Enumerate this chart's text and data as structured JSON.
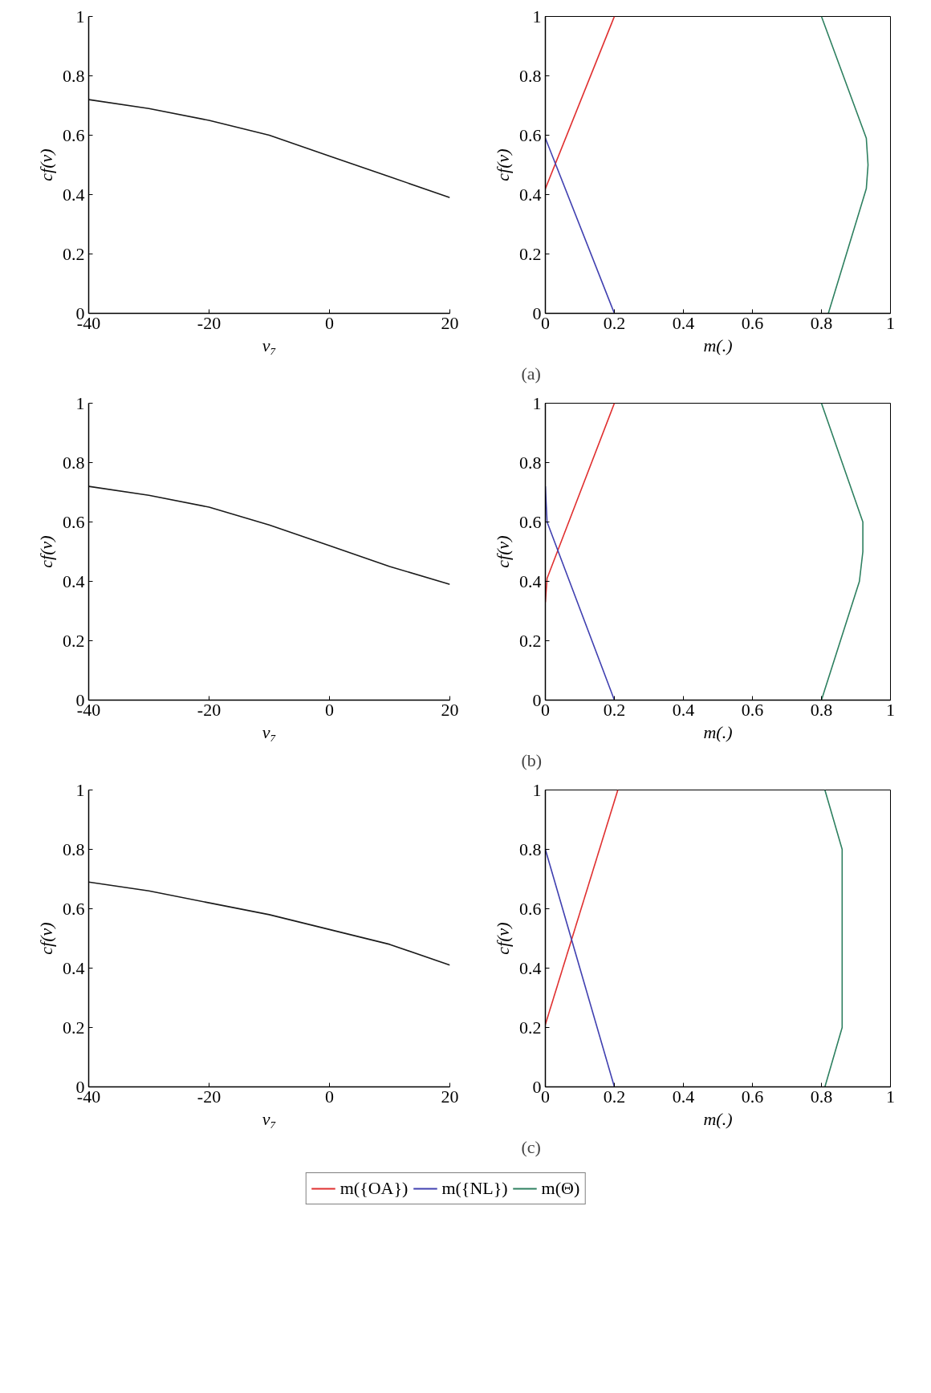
{
  "chart_data": [
    {
      "type": "line",
      "xlabel": "v₇",
      "ylabel": "cf(v)",
      "x": [
        -40,
        -30,
        -20,
        -10,
        0,
        10,
        20
      ],
      "xlim": [
        -40,
        20
      ],
      "xticks": [
        -40,
        -20,
        0,
        20
      ],
      "ylim": [
        0,
        1
      ],
      "yticks": [
        0,
        0.2,
        0.4,
        0.6,
        0.8,
        1
      ],
      "grid": false,
      "series": [
        {
          "color": "#1a1a1a",
          "values": [
            0.72,
            0.69,
            0.65,
            0.6,
            0.53,
            0.46,
            0.39
          ]
        }
      ]
    },
    {
      "type": "line",
      "xlabel": "m(.)",
      "ylabel": "cf(v)",
      "xlim": [
        0,
        1
      ],
      "xticks": [
        0,
        0.2,
        0.4,
        0.6,
        0.8,
        1
      ],
      "ylim": [
        0,
        1
      ],
      "yticks": [
        0,
        0.2,
        0.4,
        0.6,
        0.8,
        1
      ],
      "grid": false,
      "annotations": [
        "(a)"
      ],
      "series": [
        {
          "color": "#e03030",
          "x": [
            0,
            0.2
          ],
          "values": [
            0.42,
            1
          ]
        },
        {
          "color": "#4040b0",
          "x": [
            0,
            0.2
          ],
          "values": [
            0.59,
            0
          ]
        },
        {
          "color": "#2e8060",
          "x": [
            0.82,
            0.93,
            0.935,
            0.93,
            0.8
          ],
          "values": [
            0,
            0.42,
            0.5,
            0.59,
            1
          ]
        }
      ]
    },
    {
      "type": "line",
      "xlabel": "v₇",
      "ylabel": "cf(v)",
      "x": [
        -40,
        -30,
        -20,
        -10,
        0,
        10,
        20
      ],
      "xlim": [
        -40,
        20
      ],
      "xticks": [
        -40,
        -20,
        0,
        20
      ],
      "ylim": [
        0,
        1
      ],
      "yticks": [
        0,
        0.2,
        0.4,
        0.6,
        0.8,
        1
      ],
      "grid": false,
      "series": [
        {
          "color": "#1a1a1a",
          "values": [
            0.72,
            0.69,
            0.65,
            0.59,
            0.52,
            0.45,
            0.39
          ]
        }
      ]
    },
    {
      "type": "line",
      "xlabel": "m(.)",
      "ylabel": "cf(v)",
      "xlim": [
        0,
        1
      ],
      "xticks": [
        0,
        0.2,
        0.4,
        0.6,
        0.8,
        1
      ],
      "ylim": [
        0,
        1
      ],
      "yticks": [
        0,
        0.2,
        0.4,
        0.6,
        0.8,
        1
      ],
      "grid": false,
      "annotations": [
        "(b)"
      ],
      "series": [
        {
          "color": "#e03030",
          "x": [
            0,
            0.005,
            0.2
          ],
          "values": [
            0.33,
            0.41,
            1
          ]
        },
        {
          "color": "#4040b0",
          "x": [
            0,
            0.005,
            0.2
          ],
          "values": [
            0.72,
            0.6,
            0
          ]
        },
        {
          "color": "#2e8060",
          "x": [
            0.8,
            0.91,
            0.92,
            0.92,
            0.8
          ],
          "values": [
            0,
            0.4,
            0.5,
            0.6,
            1
          ]
        }
      ]
    },
    {
      "type": "line",
      "xlabel": "v₇",
      "ylabel": "cf(v)",
      "x": [
        -40,
        -30,
        -20,
        -10,
        0,
        10,
        20
      ],
      "xlim": [
        -40,
        20
      ],
      "xticks": [
        -40,
        -20,
        0,
        20
      ],
      "ylim": [
        0,
        1
      ],
      "yticks": [
        0,
        0.2,
        0.4,
        0.6,
        0.8,
        1
      ],
      "grid": false,
      "series": [
        {
          "color": "#1a1a1a",
          "values": [
            0.69,
            0.66,
            0.62,
            0.58,
            0.53,
            0.48,
            0.41
          ]
        }
      ]
    },
    {
      "type": "line",
      "xlabel": "m(.)",
      "ylabel": "cf(v)",
      "xlim": [
        0,
        1
      ],
      "xticks": [
        0,
        0.2,
        0.4,
        0.6,
        0.8,
        1
      ],
      "ylim": [
        0,
        1
      ],
      "yticks": [
        0,
        0.2,
        0.4,
        0.6,
        0.8,
        1
      ],
      "grid": false,
      "legend": "bottom",
      "annotations": [
        "(c)"
      ],
      "series": [
        {
          "name": "m({OA})",
          "color": "#e03030",
          "x": [
            0,
            0.21
          ],
          "values": [
            0.21,
            1
          ]
        },
        {
          "name": "m({NL})",
          "color": "#4040b0",
          "x": [
            0,
            0.2
          ],
          "values": [
            0.8,
            0
          ]
        },
        {
          "name": "m(Θ)",
          "color": "#2e8060",
          "x": [
            0.81,
            0.86,
            0.86,
            0.81
          ],
          "values": [
            0,
            0.2,
            0.8,
            1
          ]
        }
      ]
    }
  ]
}
